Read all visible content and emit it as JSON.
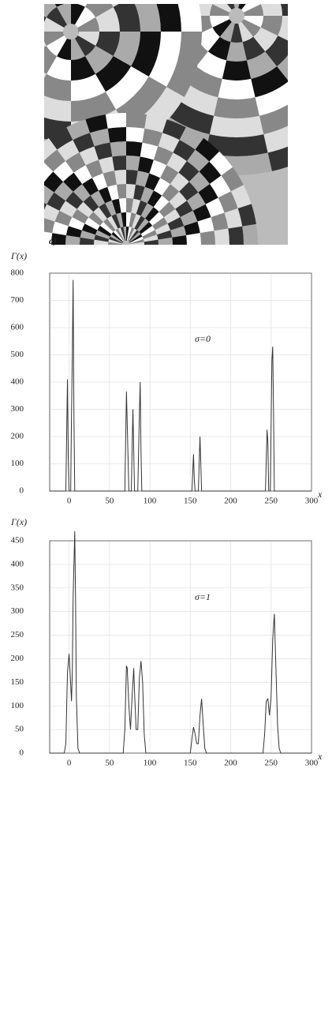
{
  "panel_label": "a)",
  "chart_data": [
    {
      "type": "line",
      "ylabel": "Γ(x)",
      "xlabel": "x",
      "annotation": "σ=0",
      "color": "#333333",
      "grid": true,
      "xlim": [
        -24,
        300
      ],
      "xticks": [
        0,
        50,
        100,
        150,
        200,
        250,
        300
      ],
      "ylim": [
        0,
        800
      ],
      "yticks": [
        0,
        100,
        200,
        300,
        400,
        500,
        600,
        700,
        800
      ],
      "x": [
        -24,
        -4,
        -2,
        -1,
        0,
        2,
        3,
        4,
        5,
        6,
        7,
        69,
        71,
        73,
        74,
        77,
        79,
        80,
        81,
        85,
        87,
        88,
        89,
        90,
        152,
        154,
        155,
        156,
        160,
        162,
        163,
        164,
        243,
        245,
        246,
        247,
        249,
        251,
        252,
        253,
        254,
        300
      ],
      "values": [
        0,
        0,
        410,
        120,
        0,
        0,
        280,
        490,
        775,
        280,
        0,
        0,
        365,
        120,
        0,
        0,
        300,
        150,
        0,
        0,
        280,
        400,
        150,
        0,
        0,
        135,
        40,
        0,
        0,
        200,
        100,
        0,
        0,
        225,
        180,
        0,
        0,
        480,
        530,
        300,
        0,
        0
      ]
    },
    {
      "type": "line",
      "ylabel": "Γ(x)",
      "xlabel": "x",
      "annotation": "σ=1",
      "color": "#333333",
      "grid": true,
      "xlim": [
        -24,
        300
      ],
      "xticks": [
        0,
        50,
        100,
        150,
        200,
        250,
        300
      ],
      "ylim": [
        0,
        450
      ],
      "yticks": [
        0,
        50,
        100,
        150,
        200,
        250,
        300,
        350,
        400,
        450
      ],
      "x": [
        -24,
        -6,
        -4,
        -2,
        0,
        1,
        3,
        4,
        5,
        7,
        8,
        9,
        11,
        13,
        67,
        69,
        71,
        72,
        74,
        76,
        78,
        80,
        81,
        83,
        85,
        87,
        89,
        91,
        93,
        95,
        150,
        152,
        154,
        156,
        158,
        160,
        162,
        164,
        166,
        168,
        170,
        240,
        242,
        244,
        246,
        248,
        250,
        252,
        254,
        256,
        258,
        260,
        262,
        300
      ],
      "values": [
        0,
        0,
        20,
        170,
        210,
        180,
        110,
        170,
        330,
        470,
        330,
        120,
        10,
        0,
        0,
        50,
        185,
        180,
        100,
        50,
        120,
        180,
        130,
        50,
        50,
        160,
        195,
        150,
        40,
        0,
        0,
        30,
        55,
        40,
        20,
        20,
        80,
        115,
        60,
        10,
        0,
        0,
        40,
        110,
        115,
        80,
        120,
        240,
        295,
        180,
        60,
        10,
        0,
        0
      ]
    }
  ]
}
